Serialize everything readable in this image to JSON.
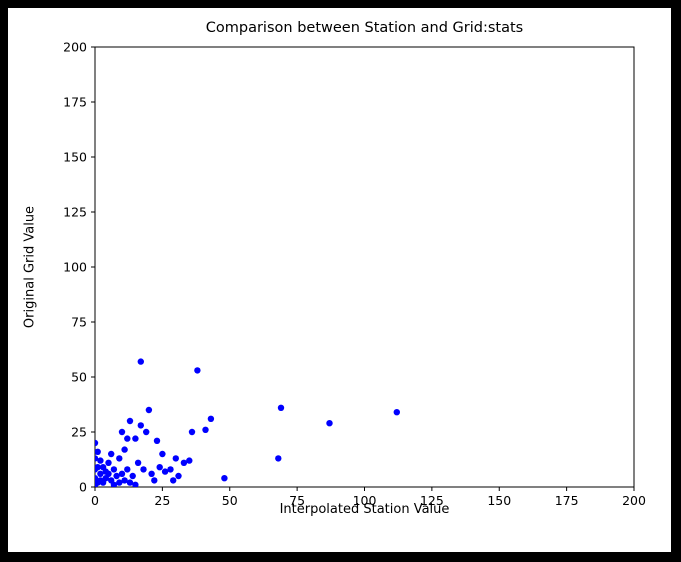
{
  "chart_data": {
    "type": "scatter",
    "title": "Comparison between Station and Grid:stats",
    "xlabel": "Interpolated Station Value",
    "ylabel": "Original Grid Value",
    "xlim": [
      0,
      200
    ],
    "ylim": [
      0,
      200
    ],
    "xticks": [
      0,
      25,
      50,
      75,
      100,
      125,
      150,
      175,
      200
    ],
    "yticks": [
      0,
      25,
      50,
      75,
      100,
      125,
      150,
      175,
      200
    ],
    "grid": false,
    "marker_color": "#0000ff",
    "marker_radius_px": 3.2,
    "points": [
      [
        112,
        34
      ],
      [
        87,
        29
      ],
      [
        69,
        36
      ],
      [
        68,
        13
      ],
      [
        38,
        53
      ],
      [
        17,
        57
      ],
      [
        43,
        31
      ],
      [
        41,
        26
      ],
      [
        36,
        25
      ],
      [
        48,
        4
      ],
      [
        20,
        35
      ],
      [
        13,
        30
      ],
      [
        17,
        28
      ],
      [
        19,
        25
      ],
      [
        10,
        25
      ],
      [
        15,
        22
      ],
      [
        12,
        22
      ],
      [
        23,
        21
      ],
      [
        11,
        17
      ],
      [
        25,
        15
      ],
      [
        6,
        15
      ],
      [
        30,
        13
      ],
      [
        9,
        13
      ],
      [
        35,
        12
      ],
      [
        33,
        11
      ],
      [
        16,
        11
      ],
      [
        5,
        11
      ],
      [
        2,
        12
      ],
      [
        24,
        9
      ],
      [
        3,
        9
      ],
      [
        18,
        8
      ],
      [
        28,
        8
      ],
      [
        7,
        8
      ],
      [
        12,
        8
      ],
      [
        1,
        16
      ],
      [
        0,
        20
      ],
      [
        0,
        13
      ],
      [
        0,
        8
      ],
      [
        26,
        7
      ],
      [
        4,
        7
      ],
      [
        21,
        6
      ],
      [
        10,
        6
      ],
      [
        2,
        6
      ],
      [
        5,
        6
      ],
      [
        14,
        5
      ],
      [
        8,
        5
      ],
      [
        1,
        9
      ],
      [
        4,
        4
      ],
      [
        0,
        4
      ],
      [
        6,
        3
      ],
      [
        11,
        3
      ],
      [
        2,
        3
      ],
      [
        13,
        2
      ],
      [
        9,
        2
      ],
      [
        3,
        2
      ],
      [
        1,
        2
      ],
      [
        7,
        1
      ],
      [
        15,
        1
      ],
      [
        0,
        1
      ],
      [
        22,
        3
      ],
      [
        31,
        5
      ],
      [
        29,
        3
      ]
    ]
  },
  "figure": {
    "background_color": "#ffffff",
    "border_color": "#000000"
  }
}
